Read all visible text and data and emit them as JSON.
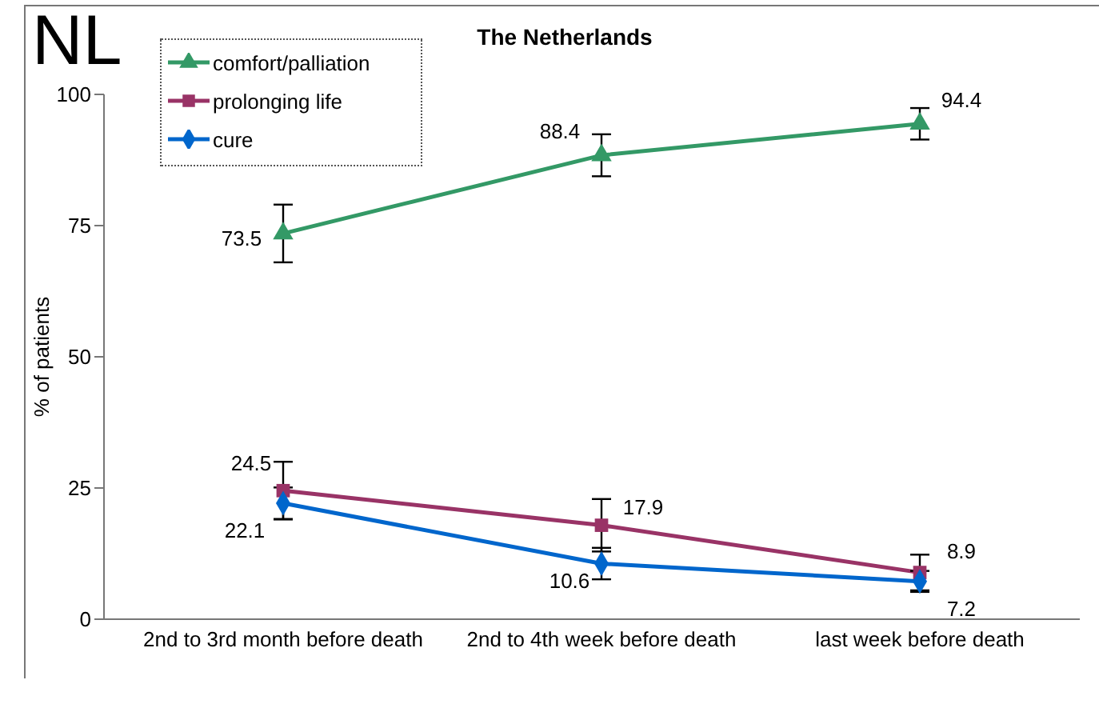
{
  "chart_data": {
    "type": "line",
    "title": "The Netherlands",
    "ylabel": "% of patients",
    "annotations": [
      "NL"
    ],
    "categories": [
      "2nd to 3rd month before death",
      "2nd to 4th week before death",
      "last week before death"
    ],
    "series": [
      {
        "name": "comfort/palliation",
        "color": "#339966",
        "marker": "triangle",
        "values": [
          73.5,
          88.4,
          94.4
        ],
        "errors": [
          5.5,
          4,
          3
        ]
      },
      {
        "name": "prolonging life",
        "color": "#993366",
        "marker": "square",
        "values": [
          24.5,
          17.9,
          8.9
        ],
        "errors": [
          5.5,
          5,
          3.4
        ]
      },
      {
        "name": "cure",
        "color": "#0066cc",
        "marker": "diamond",
        "values": [
          22.1,
          10.6,
          7.2
        ],
        "errors": [
          3,
          3,
          2
        ]
      }
    ],
    "ylim": [
      0,
      100
    ],
    "yticks": [
      0,
      25,
      50,
      75,
      100
    ],
    "grid": false,
    "legend": "top left",
    "data_labels": true
  }
}
